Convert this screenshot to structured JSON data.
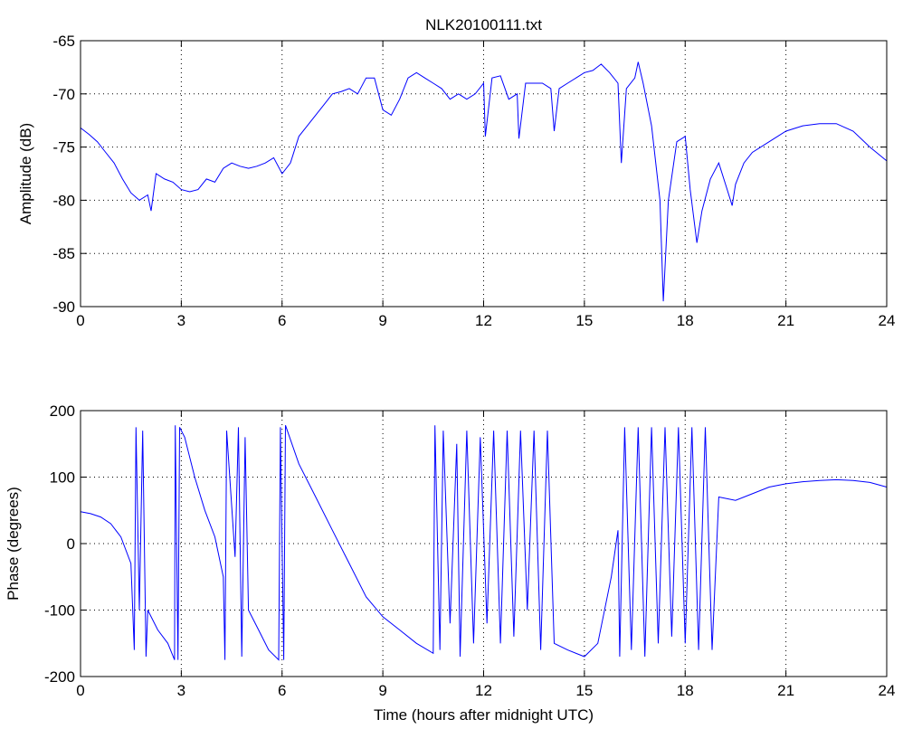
{
  "chart_data": [
    {
      "type": "line",
      "title": "NLK20100111.txt",
      "ylabel": "Amplitude (dB)",
      "grid": true,
      "xlim": [
        0,
        24
      ],
      "xticks": [
        0,
        3,
        6,
        9,
        12,
        15,
        18,
        21,
        24
      ],
      "ylim": [
        -90,
        -65
      ],
      "yticks": [
        -90,
        -85,
        -80,
        -75,
        -70,
        -65
      ],
      "x": [
        0,
        0.25,
        0.5,
        0.75,
        1,
        1.25,
        1.5,
        1.75,
        2,
        2.1,
        2.25,
        2.5,
        2.75,
        3,
        3.25,
        3.5,
        3.75,
        4,
        4.25,
        4.5,
        4.75,
        5,
        5.25,
        5.5,
        5.75,
        6,
        6.25,
        6.5,
        6.75,
        7,
        7.25,
        7.5,
        7.75,
        8,
        8.25,
        8.5,
        8.75,
        9,
        9.25,
        9.5,
        9.75,
        10,
        10.25,
        10.5,
        10.75,
        11,
        11.25,
        11.5,
        11.75,
        12,
        12.05,
        12.25,
        12.5,
        12.75,
        13,
        13.05,
        13.25,
        13.5,
        13.75,
        14,
        14.1,
        14.25,
        14.5,
        14.75,
        15,
        15.25,
        15.5,
        15.75,
        16,
        16.1,
        16.25,
        16.5,
        16.6,
        16.75,
        17,
        17.25,
        17.35,
        17.5,
        17.75,
        18,
        18.15,
        18.35,
        18.5,
        18.75,
        19,
        19.25,
        19.4,
        19.5,
        19.75,
        20,
        20.5,
        21,
        21.5,
        22,
        22.5,
        23,
        23.5,
        24
      ],
      "series": [
        {
          "color": "#0000ff",
          "values": [
            -73.2,
            -73.8,
            -74.5,
            -75.5,
            -76.5,
            -78,
            -79.3,
            -80,
            -79.5,
            -81,
            -77.5,
            -78,
            -78.3,
            -79,
            -79.2,
            -79,
            -78,
            -78.3,
            -77,
            -76.5,
            -76.8,
            -77,
            -76.8,
            -76.5,
            -76,
            -77.5,
            -76.5,
            -74,
            -73,
            -72,
            -71,
            -70,
            -69.8,
            -69.5,
            -70,
            -68.5,
            -68.5,
            -71.5,
            -72,
            -70.5,
            -68.5,
            -68,
            -68.5,
            -69,
            -69.5,
            -70.5,
            -70,
            -70.5,
            -70,
            -69,
            -74,
            -68.5,
            -68.3,
            -70.5,
            -70,
            -74.2,
            -69,
            -69,
            -69,
            -69.5,
            -73.5,
            -69.5,
            -69,
            -68.5,
            -68,
            -67.8,
            -67.2,
            -68,
            -69,
            -76.5,
            -69.5,
            -68.5,
            -67,
            -69,
            -73,
            -80,
            -89.5,
            -80,
            -74.5,
            -74,
            -79,
            -84,
            -81,
            -78,
            -76.5,
            -79,
            -80.5,
            -78.5,
            -76.5,
            -75.5,
            -74.5,
            -73.5,
            -73,
            -72.8,
            -72.8,
            -73.5,
            -75,
            -76.3
          ]
        }
      ]
    },
    {
      "type": "line",
      "xlabel": "Time (hours after midnight UTC)",
      "ylabel": "Phase (degrees)",
      "grid": true,
      "xlim": [
        0,
        24
      ],
      "xticks": [
        0,
        3,
        6,
        9,
        12,
        15,
        18,
        21,
        24
      ],
      "ylim": [
        -200,
        200
      ],
      "yticks": [
        -200,
        -100,
        0,
        100,
        200
      ],
      "x": [
        0,
        0.3,
        0.6,
        0.9,
        1.2,
        1.5,
        1.6,
        1.65,
        1.75,
        1.85,
        1.95,
        2,
        2.3,
        2.6,
        2.8,
        2.82,
        2.9,
        2.95,
        3.1,
        3.4,
        3.7,
        4,
        4.25,
        4.3,
        4.35,
        4.6,
        4.7,
        4.8,
        4.9,
        5,
        5.3,
        5.6,
        5.9,
        5.95,
        6.05,
        6.1,
        6.5,
        7,
        7.5,
        8,
        8.5,
        9,
        9.5,
        10,
        10.5,
        10.55,
        10.7,
        10.8,
        11,
        11.2,
        11.3,
        11.5,
        11.7,
        11.9,
        12.1,
        12.3,
        12.5,
        12.7,
        12.9,
        13.1,
        13.3,
        13.5,
        13.7,
        13.9,
        14.1,
        14.5,
        15,
        15.4,
        15.8,
        16,
        16.05,
        16.2,
        16.4,
        16.6,
        16.8,
        17,
        17.2,
        17.4,
        17.6,
        17.8,
        18,
        18.2,
        18.4,
        18.6,
        18.8,
        19,
        19.5,
        20,
        20.5,
        21,
        21.5,
        22,
        22.5,
        23,
        23.5,
        24
      ],
      "series": [
        {
          "color": "#0000ff",
          "values": [
            48,
            45,
            40,
            30,
            10,
            -30,
            -160,
            175,
            -100,
            170,
            -170,
            -100,
            -130,
            -150,
            -175,
            178,
            -175,
            175,
            160,
            100,
            50,
            10,
            -50,
            -175,
            170,
            -20,
            175,
            -170,
            160,
            -100,
            -130,
            -160,
            -175,
            175,
            -175,
            178,
            120,
            70,
            20,
            -30,
            -80,
            -110,
            -130,
            -150,
            -165,
            178,
            -160,
            170,
            -120,
            150,
            -170,
            170,
            -150,
            160,
            -120,
            170,
            -150,
            170,
            -140,
            170,
            -100,
            170,
            -160,
            170,
            -150,
            -160,
            -170,
            -150,
            -50,
            20,
            -170,
            175,
            -160,
            175,
            -170,
            175,
            -150,
            175,
            -140,
            175,
            -150,
            175,
            -160,
            175,
            -160,
            70,
            65,
            75,
            85,
            90,
            93,
            95,
            96,
            95,
            92,
            85
          ]
        }
      ]
    }
  ]
}
